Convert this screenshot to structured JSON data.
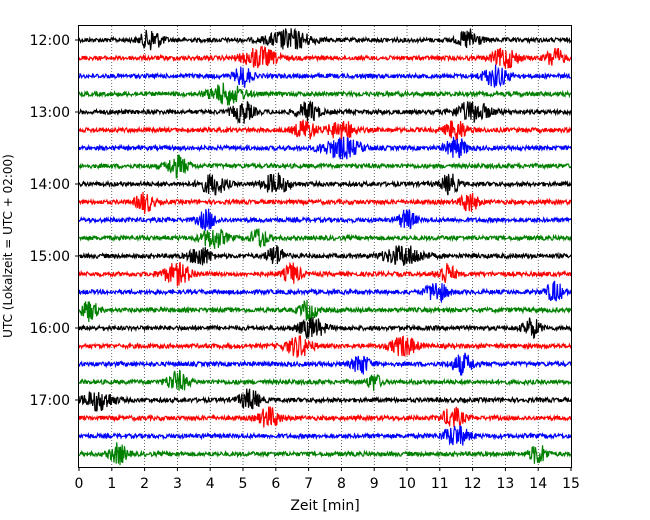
{
  "chart_data": {
    "type": "line",
    "title": "",
    "xlabel": "Zeit  [min]",
    "ylabel": "UTC (Lokalzeit = UTC + 02:00)",
    "xlim": [
      0,
      15
    ],
    "x_ticks": [
      "0",
      "1",
      "2",
      "3",
      "4",
      "5",
      "6",
      "7",
      "8",
      "9",
      "10",
      "11",
      "12",
      "13",
      "14",
      "15"
    ],
    "y_ticks": [
      "12:00",
      "13:00",
      "14:00",
      "15:00",
      "16:00",
      "17:00"
    ],
    "grid": "vertical dotted at each minute",
    "trace_colors": [
      "#000000",
      "#ff0000",
      "#0000ff",
      "#008000"
    ],
    "series": [
      {
        "start": "12:00",
        "bursts": [
          [
            2.2,
            0.5
          ],
          [
            6.4,
            1.0
          ],
          [
            11.9,
            0.5
          ]
        ]
      },
      {
        "start": "12:15",
        "bursts": [
          [
            5.5,
            0.8
          ],
          [
            13.0,
            0.6
          ],
          [
            14.5,
            0.4
          ]
        ]
      },
      {
        "start": "12:30",
        "bursts": [
          [
            5.0,
            0.4
          ],
          [
            12.7,
            0.6
          ]
        ]
      },
      {
        "start": "12:45",
        "bursts": [
          [
            4.5,
            0.8
          ]
        ]
      },
      {
        "start": "13:00",
        "bursts": [
          [
            5.0,
            0.5
          ],
          [
            7.0,
            0.5
          ],
          [
            12.0,
            0.8
          ]
        ]
      },
      {
        "start": "13:15",
        "bursts": [
          [
            6.9,
            0.5
          ],
          [
            8.0,
            0.6
          ],
          [
            11.5,
            0.5
          ]
        ]
      },
      {
        "start": "13:30",
        "bursts": [
          [
            8.0,
            0.9
          ],
          [
            11.5,
            0.5
          ]
        ]
      },
      {
        "start": "13:45",
        "bursts": [
          [
            3.0,
            0.5
          ]
        ]
      },
      {
        "start": "14:00",
        "bursts": [
          [
            4.1,
            0.6
          ],
          [
            6.0,
            0.6
          ],
          [
            11.3,
            0.4
          ]
        ]
      },
      {
        "start": "14:15",
        "bursts": [
          [
            2.0,
            0.4
          ],
          [
            11.9,
            0.4
          ]
        ]
      },
      {
        "start": "14:30",
        "bursts": [
          [
            3.9,
            0.4
          ],
          [
            10.0,
            0.4
          ]
        ]
      },
      {
        "start": "14:45",
        "bursts": [
          [
            4.1,
            0.6
          ],
          [
            5.5,
            0.4
          ]
        ]
      },
      {
        "start": "15:00",
        "bursts": [
          [
            3.7,
            0.5
          ],
          [
            6.0,
            0.4
          ],
          [
            9.9,
            0.9
          ]
        ]
      },
      {
        "start": "15:15",
        "bursts": [
          [
            3.0,
            0.7
          ],
          [
            6.5,
            0.4
          ],
          [
            11.2,
            0.4
          ]
        ]
      },
      {
        "start": "15:30",
        "bursts": [
          [
            10.9,
            0.5
          ],
          [
            14.5,
            0.4
          ]
        ]
      },
      {
        "start": "15:45",
        "bursts": [
          [
            0.3,
            0.4
          ],
          [
            7.0,
            0.4
          ]
        ]
      },
      {
        "start": "16:00",
        "bursts": [
          [
            7.1,
            0.6
          ],
          [
            13.8,
            0.4
          ]
        ]
      },
      {
        "start": "16:15",
        "bursts": [
          [
            6.7,
            0.6
          ],
          [
            9.9,
            0.6
          ]
        ]
      },
      {
        "start": "16:30",
        "bursts": [
          [
            8.6,
            0.4
          ],
          [
            11.7,
            0.5
          ]
        ]
      },
      {
        "start": "16:45",
        "bursts": [
          [
            3.0,
            0.5
          ],
          [
            9.0,
            0.3
          ]
        ]
      },
      {
        "start": "17:00",
        "bursts": [
          [
            0.6,
            0.7
          ],
          [
            5.2,
            0.5
          ]
        ]
      },
      {
        "start": "17:15",
        "bursts": [
          [
            5.8,
            0.5
          ],
          [
            11.4,
            0.5
          ]
        ]
      },
      {
        "start": "17:30",
        "bursts": [
          [
            11.5,
            0.6
          ]
        ]
      },
      {
        "start": "17:45",
        "bursts": [
          [
            1.2,
            0.4
          ],
          [
            14.0,
            0.4
          ]
        ]
      }
    ]
  }
}
